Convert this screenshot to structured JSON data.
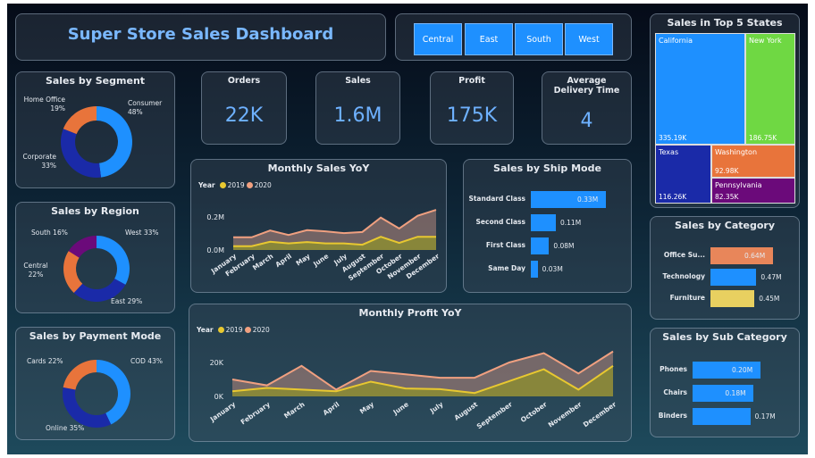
{
  "header": {
    "title": "Super Store Sales Dashboard"
  },
  "filters": {
    "items": [
      "Central",
      "East",
      "South",
      "West"
    ],
    "color": "#1e90ff"
  },
  "kpis": [
    {
      "label": "Orders",
      "value": "22K"
    },
    {
      "label": "Sales",
      "value": "1.6M"
    },
    {
      "label": "Profit",
      "value": "175K"
    },
    {
      "label": "Average Delivery Time",
      "value": "4"
    }
  ],
  "segment": {
    "title": "Sales by Segment",
    "slices": [
      {
        "label": "Consumer",
        "pct": "48%",
        "value": 48,
        "color": "#1e90ff"
      },
      {
        "label": "Corporate",
        "pct": "33%",
        "value": 33,
        "color": "#1a2aa8"
      },
      {
        "label": "Home Office",
        "pct": "19%",
        "value": 19,
        "color": "#e8743b"
      }
    ]
  },
  "region": {
    "title": "Sales by Region",
    "slices": [
      {
        "label": "West 33%",
        "value": 33,
        "color": "#1e90ff"
      },
      {
        "label": "East 29%",
        "value": 29,
        "color": "#1a2aa8"
      },
      {
        "label": "Central 22%",
        "value": 22,
        "color": "#e8743b"
      },
      {
        "label": "South 16%",
        "value": 16,
        "color": "#6b0a7a"
      }
    ]
  },
  "payment": {
    "title": "Sales by Payment Mode",
    "slices": [
      {
        "label": "COD 43%",
        "value": 43,
        "color": "#1e90ff"
      },
      {
        "label": "Online 35%",
        "value": 35,
        "color": "#1a2aa8"
      },
      {
        "label": "Cards 22%",
        "value": 22,
        "color": "#e8743b"
      }
    ]
  },
  "states": {
    "title": "Sales in Top 5 States",
    "items": [
      {
        "name": "California",
        "value": "335.19K",
        "color": "#1e90ff"
      },
      {
        "name": "New York",
        "value": "186.75K",
        "color": "#6fd843"
      },
      {
        "name": "Texas",
        "value": "116.26K",
        "color": "#1a2aa8"
      },
      {
        "name": "Washington",
        "value": "92.98K",
        "color": "#e8743b"
      },
      {
        "name": "Pennsylvania",
        "value": "82.35K",
        "color": "#6b0a7a"
      }
    ]
  },
  "ship": {
    "title": "Sales by Ship Mode",
    "max": 0.33,
    "items": [
      {
        "label": "Standard Class",
        "value": 0.33,
        "text": "0.33M"
      },
      {
        "label": "Second Class",
        "value": 0.11,
        "text": "0.11M"
      },
      {
        "label": "First Class",
        "value": 0.08,
        "text": "0.08M"
      },
      {
        "label": "Same Day",
        "value": 0.03,
        "text": "0.03M"
      }
    ]
  },
  "category": {
    "title": "Sales by Category",
    "max": 0.64,
    "items": [
      {
        "label": "Office Su...",
        "value": 0.64,
        "text": "0.64M",
        "color": "#e8865a"
      },
      {
        "label": "Technology",
        "value": 0.47,
        "text": "0.47M",
        "color": "#1e90ff"
      },
      {
        "label": "Furniture",
        "value": 0.45,
        "text": "0.45M",
        "color": "#e8d060"
      }
    ]
  },
  "subcategory": {
    "title": "Sales by Sub Category",
    "max": 0.2,
    "items": [
      {
        "label": "Phones",
        "value": 0.2,
        "text": "0.20M"
      },
      {
        "label": "Chairs",
        "value": 0.18,
        "text": "0.18M"
      },
      {
        "label": "Binders",
        "value": 0.17,
        "text": "0.17M"
      }
    ]
  },
  "chart_data": [
    {
      "type": "area",
      "title": "Monthly Sales YoY",
      "legend_title": "Year",
      "unit": "M",
      "x": [
        "January",
        "February",
        "March",
        "April",
        "May",
        "June",
        "July",
        "August",
        "September",
        "October",
        "November",
        "December"
      ],
      "yticks": [
        {
          "v": 0,
          "label": "0.0M"
        },
        {
          "v": 0.2,
          "label": "0.2M"
        }
      ],
      "series": [
        {
          "name": "2019",
          "color": "#e8c830",
          "values": [
            0.023,
            0.023,
            0.05,
            0.04,
            0.048,
            0.04,
            0.04,
            0.032,
            0.08,
            0.043,
            0.08,
            0.08
          ]
        },
        {
          "name": "2020",
          "color": "#f0a080",
          "values": [
            0.077,
            0.077,
            0.118,
            0.091,
            0.12,
            0.113,
            0.102,
            0.109,
            0.196,
            0.13,
            0.207,
            0.243
          ]
        }
      ]
    },
    {
      "type": "area",
      "title": "Monthly Profit YoY",
      "legend_title": "Year",
      "unit": "K",
      "x": [
        "January",
        "February",
        "March",
        "April",
        "May",
        "June",
        "July",
        "August",
        "September",
        "October",
        "November",
        "December"
      ],
      "yticks": [
        {
          "v": 0,
          "label": "0K"
        },
        {
          "v": 20,
          "label": "20K"
        }
      ],
      "series": [
        {
          "name": "2019",
          "color": "#e8c830",
          "values": [
            3,
            5,
            4,
            3,
            8.7,
            4.7,
            4.3,
            2,
            9,
            16,
            4,
            18
          ]
        },
        {
          "name": "2020",
          "color": "#f0a080",
          "values": [
            10,
            6.5,
            18,
            4,
            15,
            13,
            11,
            11,
            20,
            25.5,
            13.5,
            26.5
          ]
        }
      ]
    }
  ]
}
